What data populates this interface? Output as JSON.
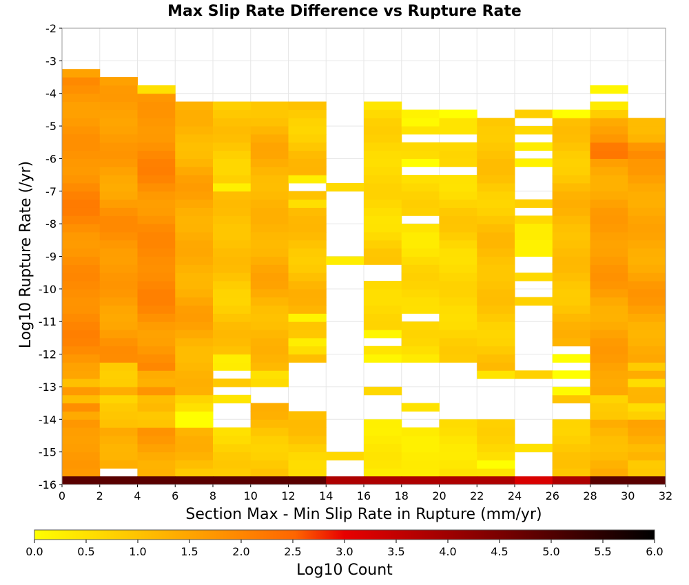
{
  "chart_data": {
    "type": "heatmap",
    "title": "Max Slip Rate Difference vs Rupture Rate",
    "xlabel": "Section Max - Min Slip Rate in Rupture (mm/yr)",
    "ylabel": "Log10 Rupture Rate (/yr)",
    "xlim": [
      0,
      32
    ],
    "ylim": [
      -16,
      -2
    ],
    "x_ticks": [
      "0",
      "2",
      "4",
      "6",
      "8",
      "10",
      "12",
      "14",
      "16",
      "18",
      "20",
      "22",
      "24",
      "26",
      "28",
      "30",
      "32"
    ],
    "y_ticks": [
      "-2",
      "-3",
      "-4",
      "-5",
      "-6",
      "-7",
      "-8",
      "-9",
      "-10",
      "-11",
      "-12",
      "-13",
      "-14",
      "-15",
      "-16"
    ],
    "x_bin_width": 2,
    "y_bin_height": 0.25,
    "y_bin_start": -16,
    "colorbar": {
      "label": "Log10 Count",
      "range": [
        0,
        6
      ],
      "ticks": [
        "0.0",
        "0.5",
        "1.0",
        "1.5",
        "2.0",
        "2.5",
        "3.0",
        "3.5",
        "4.0",
        "4.5",
        "5.0",
        "5.5",
        "6.0"
      ],
      "colors": [
        "#ffff00",
        "#ffa500",
        "#ff6600",
        "#e80000",
        "#7a0000",
        "#000000"
      ]
    },
    "columns": [
      {
        "x": 0,
        "top": -3.25,
        "base": 1.9,
        "missing": [],
        "bumps": [
          [
            -3.7,
            -0.8
          ],
          [
            -3.5,
            -0.4
          ],
          [
            -16,
            -1.0
          ],
          [
            -15.8,
            -0.6
          ],
          [
            -14,
            -0.4
          ],
          [
            -13.5,
            -0.7
          ],
          [
            -13,
            -0.5
          ],
          [
            -12.8,
            -0.6
          ]
        ]
      },
      {
        "x": 2,
        "top": -3.5,
        "base": 1.7,
        "missing": [
          -15.75
        ],
        "bumps": [
          [
            -3.7,
            -1.0
          ],
          [
            -12.5,
            -0.9
          ],
          [
            -12.75,
            -0.8
          ],
          [
            -13.5,
            -0.7
          ],
          [
            -13,
            -0.6
          ],
          [
            -14.25,
            -0.5
          ],
          [
            -14,
            -0.6
          ],
          [
            -13.75,
            -0.6
          ],
          [
            -16,
            -1.0
          ]
        ]
      },
      {
        "x": 4,
        "top": -3.75,
        "base": 1.9,
        "missing": [],
        "bumps": [
          [
            -4,
            -1.1
          ],
          [
            -12.75,
            -0.6
          ],
          [
            -13,
            -0.6
          ],
          [
            -13.5,
            -0.6
          ],
          [
            -13.75,
            -0.5
          ],
          [
            -14.25,
            -0.8
          ],
          [
            -14,
            -0.8
          ],
          [
            -16,
            -0.8
          ]
        ]
      },
      {
        "x": 6,
        "top": -4.25,
        "base": 1.4,
        "missing": [],
        "bumps": [
          [
            -4.25,
            -1.0
          ],
          [
            -14.25,
            -1.2
          ],
          [
            -14,
            -1.3
          ],
          [
            -13.75,
            -0.6
          ],
          [
            -13.5,
            -0.5
          ],
          [
            -16,
            -0.6
          ]
        ]
      },
      {
        "x": 8,
        "top": -4.25,
        "base": 1.0,
        "missing": [
          -14,
          -14.25,
          -13.75,
          -13.25,
          -12.75
        ],
        "bumps": [
          [
            -4.25,
            -0.8
          ],
          [
            -7.0,
            -0.7
          ],
          [
            -12.5,
            -0.5
          ],
          [
            -12.25,
            -0.6
          ],
          [
            -13.5,
            -0.5
          ],
          [
            -16,
            -0.8
          ]
        ]
      },
      {
        "x": 10,
        "top": -4.25,
        "base": 1.3,
        "missing": [
          -13.5,
          -13.25
        ],
        "bumps": [
          [
            -4.25,
            -0.9
          ],
          [
            -13,
            -0.5
          ],
          [
            -12.75,
            -0.6
          ],
          [
            -16,
            -0.8
          ]
        ]
      },
      {
        "x": 12,
        "top": -4.25,
        "base": 1.1,
        "missing": [
          -7,
          -12.5,
          -12.75,
          -13,
          -13.25,
          -13.5,
          -13.75
        ],
        "bumps": [
          [
            -4.25,
            -0.9
          ],
          [
            -6.75,
            -0.9
          ],
          [
            -7.5,
            -0.5
          ],
          [
            -11,
            -0.9
          ],
          [
            -11.75,
            -0.7
          ],
          [
            -12,
            -0.5
          ],
          [
            -16,
            -0.8
          ]
        ]
      },
      {
        "x": 14,
        "top": -6.75,
        "base": 0.5,
        "band": [
          -7.0,
          -6.75
        ],
        "band2": [
          -9.25,
          -9.0
        ],
        "band3": [
          -15.25,
          -15.0
        ],
        "missing": [],
        "bumps": []
      },
      {
        "x": 16,
        "top": -4.25,
        "base": 0.7,
        "missing": [
          -13.5,
          -13.75,
          -13,
          -12.75,
          -12.5,
          -14,
          -11.75,
          -9.5,
          -9.75
        ],
        "bumps": [
          [
            -13.25,
            -0.2
          ],
          [
            -12.25,
            -0.3
          ],
          [
            -11.5,
            -0.5
          ]
        ]
      },
      {
        "x": 18,
        "top": -4.5,
        "base": 0.6,
        "missing": [
          -5.5,
          -6.5,
          -8.0,
          -11,
          -13.5,
          -14,
          -14.25,
          -13,
          -13.25,
          -12.75,
          -12.5
        ],
        "bumps": [
          [
            -13.75,
            -0.2
          ],
          [
            -5,
            -0.2
          ],
          [
            -6.25,
            -0.5
          ]
        ]
      },
      {
        "x": 20,
        "top": -4.5,
        "base": 0.7,
        "missing": [
          -5.5,
          -6.5,
          -12.5,
          -12.75,
          -13,
          -13.25,
          -13.5,
          -13.75,
          -14
        ],
        "bumps": [
          [
            -4.75,
            -0.6
          ]
        ]
      },
      {
        "x": 22,
        "top": -4.75,
        "base": 1.0,
        "missing": [
          -13,
          -13.25,
          -13.5,
          -13.75,
          -14
        ],
        "bumps": [
          [
            -12.75,
            -0.7
          ],
          [
            -15.5,
            -0.6
          ]
        ]
      },
      {
        "x": 24,
        "top": -4.5,
        "base": 0.5,
        "band_list": [
          [
            -4.75,
            -4.5
          ],
          [
            -5.25,
            -5.0
          ],
          [
            -5.75,
            -5.5
          ],
          [
            -6.25,
            -6.0
          ],
          [
            -7.5,
            -7.25
          ],
          [
            -8.0,
            -7.75
          ],
          [
            -8.5,
            -8.0
          ],
          [
            -9.0,
            -8.5
          ],
          [
            -9.75,
            -9.5
          ],
          [
            -10.5,
            -10.25
          ],
          [
            -12.75,
            -12.5
          ],
          [
            -15.0,
            -14.75
          ]
        ],
        "missing": [],
        "bumps": []
      },
      {
        "x": 26,
        "top": -4.5,
        "base": 1.1,
        "missing": [
          -12.5,
          -13.0,
          -13.75,
          -14.0,
          -12.0
        ],
        "bumps": [
          [
            -4.5,
            -1.0
          ],
          [
            -4.75,
            -1.1
          ],
          [
            -12.75,
            -0.9
          ],
          [
            -12.25,
            -0.9
          ],
          [
            -13.25,
            -0.9
          ]
        ]
      },
      {
        "x": 28,
        "top": -3.75,
        "base": 1.6,
        "missing": [
          -4.25
        ],
        "bumps": [
          [
            -4,
            -1.3
          ],
          [
            -4.5,
            -1.0
          ],
          [
            -4.75,
            -0.5
          ],
          [
            -6,
            0.5
          ],
          [
            -5.75,
            0.4
          ],
          [
            -13.5,
            -0.8
          ],
          [
            -13.75,
            -0.7
          ],
          [
            -14,
            -0.6
          ]
        ]
      },
      {
        "x": 30,
        "top": -4.75,
        "base": 1.5,
        "missing": [],
        "bumps": [
          [
            -4.75,
            -1.0
          ],
          [
            -5.75,
            0.3
          ],
          [
            -6,
            0.3
          ],
          [
            -12.5,
            -0.6
          ],
          [
            -13.0,
            -0.7
          ],
          [
            -13.75,
            -0.8
          ],
          [
            -14,
            -0.7
          ],
          [
            -15.25,
            0.3
          ]
        ]
      }
    ],
    "floor_bin": {
      "y0": -16,
      "y1": -15.75,
      "values_by_x": [
        4.9,
        4.9,
        4.9,
        4.9,
        4.9,
        4.9,
        4.9,
        3.8,
        3.8,
        3.8,
        3.8,
        3.8,
        3.2,
        3.8,
        4.9,
        4.9
      ]
    }
  }
}
